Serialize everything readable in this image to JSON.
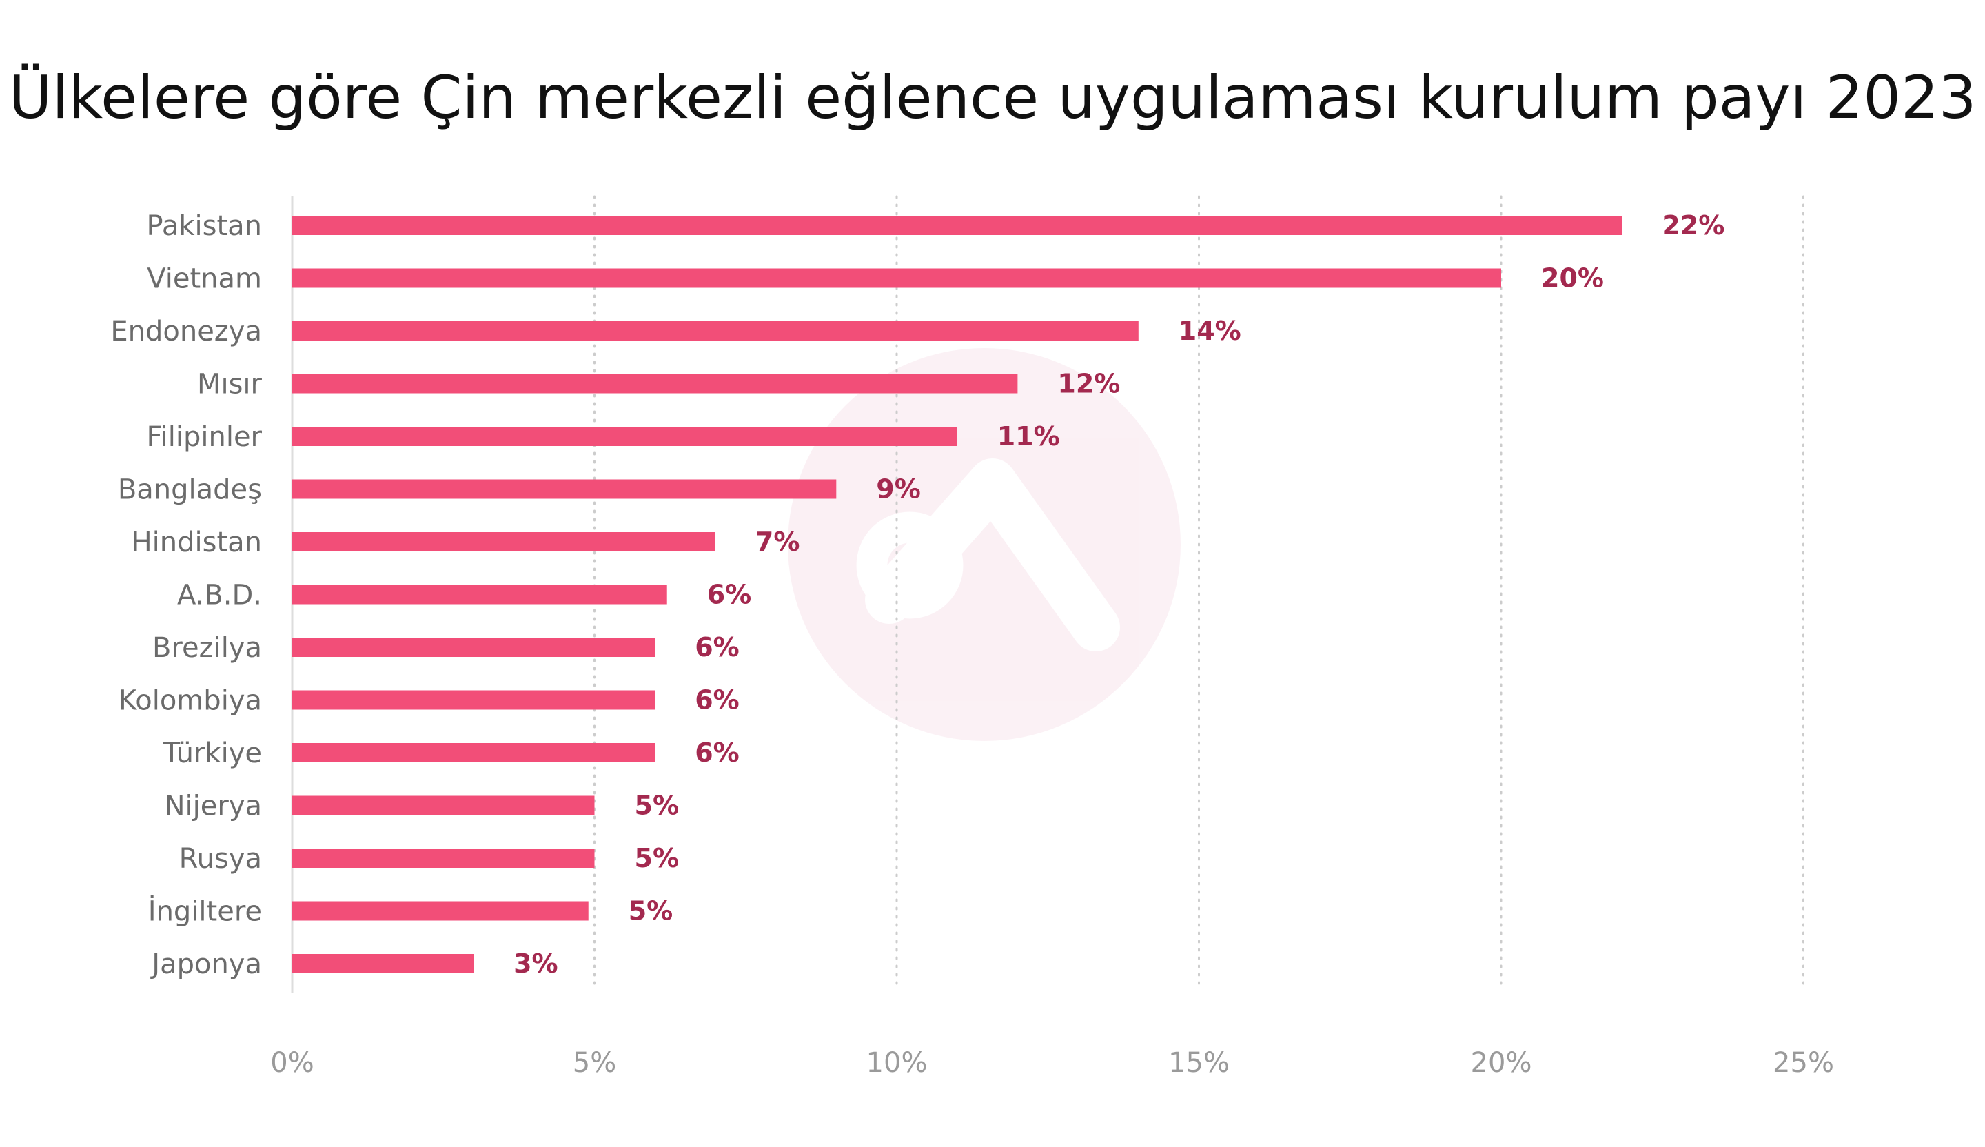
{
  "chart_data": {
    "type": "bar",
    "orientation": "horizontal",
    "title": "Ülkelere göre Çin merkezli eğlence uygulaması kurulum payı 2023",
    "categories": [
      "Pakistan",
      "Vietnam",
      "Endonezya",
      "Mısır",
      "Filipinler",
      "Bangladeş",
      "Hindistan",
      "A.B.D.",
      "Brezilya",
      "Kolombiya",
      "Türkiye",
      "Nijerya",
      "Rusya",
      "İngiltere",
      "Japonya"
    ],
    "values": [
      22,
      20,
      14,
      12,
      11,
      9,
      7,
      6.2,
      6,
      6,
      6,
      5,
      5,
      4.9,
      3
    ],
    "value_labels": [
      "22%",
      "20%",
      "14%",
      "12%",
      "11%",
      "9%",
      "7%",
      "6%",
      "6%",
      "6%",
      "6%",
      "5%",
      "5%",
      "5%",
      "3%"
    ],
    "x_ticks": [
      0,
      5,
      10,
      15,
      20,
      25
    ],
    "x_tick_labels": [
      "0%",
      "5%",
      "10%",
      "15%",
      "20%",
      "25%"
    ],
    "xlim": [
      0,
      25
    ],
    "xlabel": "",
    "ylabel": "",
    "grid": "vertical dotted",
    "legend": "none",
    "bar_color": "#f24e78",
    "value_label_color": "#a3294f",
    "watermark": "logo"
  }
}
